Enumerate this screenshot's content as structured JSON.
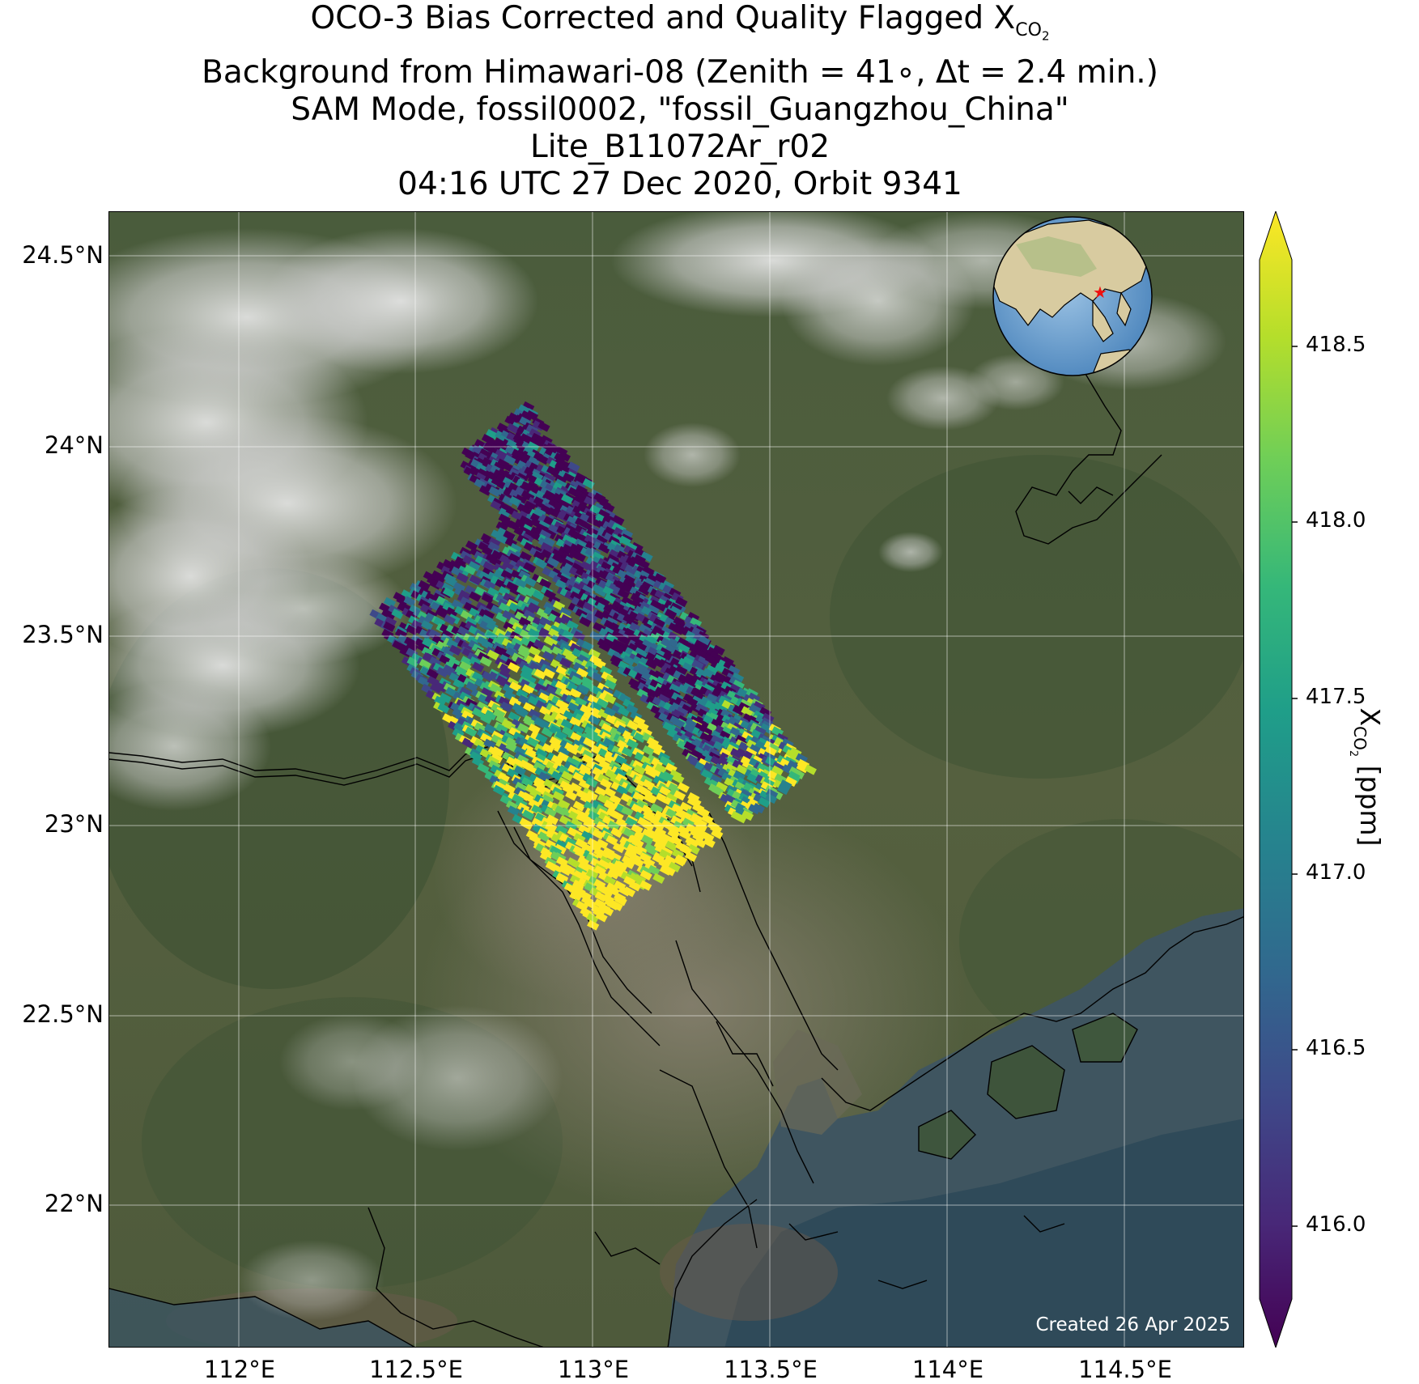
{
  "title": {
    "line1_prefix": "OCO-3 Bias Corrected and Quality Flagged X",
    "line1_sub": "CO",
    "line1_subsub": "2",
    "line2": "Background from Himawari-08 (Zenith = 41∘, Δt =  2.4 min.)",
    "line3": "SAM Mode, fossil0002, \"fossil_Guangzhou_China\"",
    "line4": "Lite_B11072Ar_r02",
    "line5": "04:16 UTC 27 Dec 2020, Orbit 9341"
  },
  "axes": {
    "lat_ticks": [
      "24.5°N",
      "24°N",
      "23.5°N",
      "23°N",
      "22.5°N",
      "22°N"
    ],
    "lon_ticks": [
      "112°E",
      "112.5°E",
      "113°E",
      "113.5°E",
      "114°E",
      "114.5°E"
    ]
  },
  "colorbar": {
    "label_prefix": "X",
    "label_sub": "CO",
    "label_subsub": "2",
    "label_suffix": " [ppm]",
    "ticks": [
      "418.5",
      "418.0",
      "417.5",
      "417.0",
      "416.5",
      "416.0"
    ],
    "range": [
      415.75,
      418.75
    ],
    "extend": "both",
    "colormap": "viridis"
  },
  "map": {
    "lat_range": [
      21.62,
      24.62
    ],
    "lon_range": [
      111.6,
      114.9
    ],
    "background": "Himawari-08 true color",
    "gridlines": true,
    "inset_globe_marker": "red star at Guangzhou"
  },
  "created": "Created 26 Apr 2025"
}
